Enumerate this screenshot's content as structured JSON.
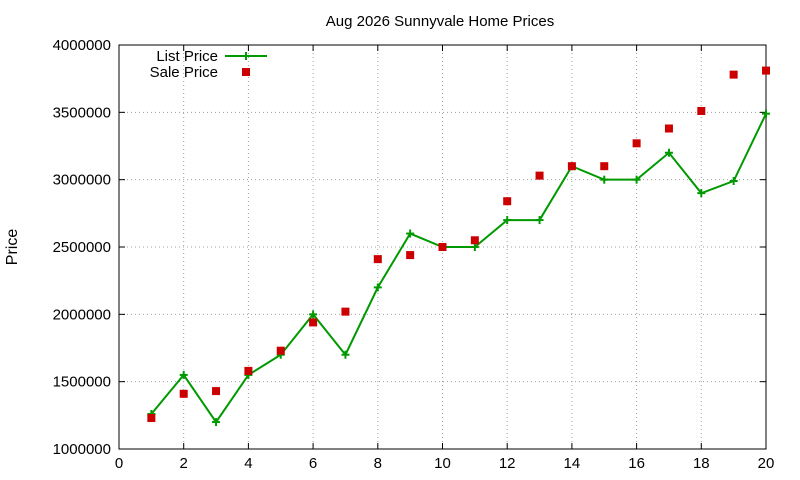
{
  "chart_data": {
    "type": "line",
    "title": "Aug 2026 Sunnyvale Home Prices",
    "xlabel": "",
    "ylabel": "Price",
    "xlim": [
      0,
      20
    ],
    "ylim": [
      1000000,
      4000000
    ],
    "x_ticks": [
      0,
      2,
      4,
      6,
      8,
      10,
      12,
      14,
      16,
      18,
      20
    ],
    "y_ticks": [
      1000000,
      1500000,
      2000000,
      2500000,
      3000000,
      3500000,
      4000000
    ],
    "grid": true,
    "legend_position": "top-left",
    "series": [
      {
        "name": "List Price",
        "style": "line-plus",
        "color": "#009900",
        "x": [
          1,
          2,
          3,
          4,
          5,
          6,
          7,
          8,
          9,
          10,
          11,
          12,
          13,
          14,
          15,
          16,
          17,
          18,
          19,
          20
        ],
        "y": [
          1260000,
          1550000,
          1200000,
          1550000,
          1700000,
          2000000,
          1700000,
          2200000,
          2600000,
          2500000,
          2500000,
          2700000,
          2700000,
          3100000,
          3000000,
          3000000,
          3200000,
          2900000,
          2990000,
          3490000
        ]
      },
      {
        "name": "Sale Price",
        "style": "square",
        "color": "#cc0000",
        "x": [
          1,
          2,
          3,
          4,
          5,
          6,
          7,
          8,
          9,
          10,
          11,
          12,
          13,
          14,
          15,
          16,
          17,
          18,
          19,
          20
        ],
        "y": [
          1230000,
          1410000,
          1430000,
          1580000,
          1730000,
          1940000,
          2020000,
          2410000,
          2440000,
          2500000,
          2550000,
          2840000,
          3030000,
          3100000,
          3100000,
          3270000,
          3380000,
          3510000,
          3780000,
          3810000
        ]
      }
    ]
  }
}
